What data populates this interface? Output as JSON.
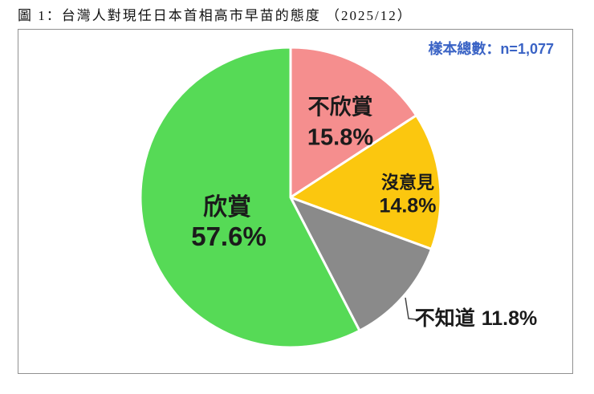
{
  "figure": {
    "title": "圖 1：台灣人對現任日本首相高市早苗的態度 （2025/12）",
    "sample_note": "樣本總數：n=1,077"
  },
  "chart_data": {
    "type": "pie",
    "title": "圖 1：台灣人對現任日本首相高市早苗的態度 （2025/12）",
    "sample_note": "樣本總數：n=1,077",
    "sample_size": 1077,
    "date_label": "2025/12",
    "start_angle_deg": 0,
    "direction": "clockwise",
    "stroke_color": "#ffffff",
    "leader_line_color": "#444444",
    "slices": [
      {
        "key": "disapprove",
        "label": "不欣賞",
        "value": 15.8,
        "display": "15.8%",
        "color": "#F58E8E",
        "label_position": "inside"
      },
      {
        "key": "no-opinion",
        "label": "沒意見",
        "value": 14.8,
        "display": "14.8%",
        "color": "#FBC70F",
        "label_position": "inside"
      },
      {
        "key": "dont-know",
        "label": "不知道",
        "value": 11.8,
        "display": "11.8%",
        "color": "#8A8A8A",
        "label_position": "outside"
      },
      {
        "key": "approve",
        "label": "欣賞",
        "value": 57.6,
        "display": "57.6%",
        "color": "#56DA56",
        "label_position": "inside"
      }
    ]
  }
}
